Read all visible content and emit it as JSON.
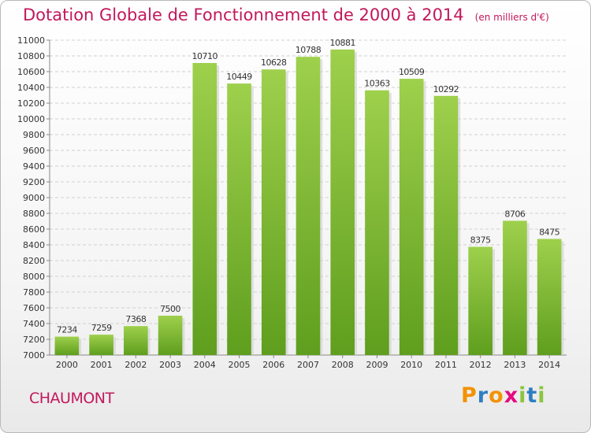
{
  "header": {
    "title": "Dotation Globale de Fonctionnement de 2000 à 2014",
    "unit": "(en milliers d'€)"
  },
  "footer": {
    "commune": "CHAUMONT",
    "brand_letters": [
      "P",
      "r",
      "o",
      "x",
      "i",
      "t",
      "i"
    ],
    "brand_colors": [
      "#f39200",
      "#2e7fc1",
      "#f39200",
      "#e5097f",
      "#8bc53f",
      "#2e7fc1",
      "#8bc53f"
    ]
  },
  "colors": {
    "bar_light": "#9ed04c",
    "bar_dark": "#5f9e1e",
    "grid": "#d0d0d0",
    "label": "#333333"
  },
  "chart_data": {
    "type": "bar",
    "categories": [
      "2000",
      "2001",
      "2002",
      "2003",
      "2004",
      "2005",
      "2006",
      "2007",
      "2008",
      "2009",
      "2010",
      "2011",
      "2012",
      "2013",
      "2014"
    ],
    "values": [
      7234,
      7259,
      7368,
      7500,
      10710,
      10449,
      10628,
      10788,
      10881,
      10363,
      10509,
      10292,
      8375,
      8706,
      8475
    ],
    "data_labels": [
      "7234",
      "7259",
      "7368",
      "7500",
      "10710",
      "10449",
      "10628",
      "10788",
      "10881",
      "10363",
      "10509",
      "10292",
      "8375",
      "8706",
      "8475"
    ],
    "ylim": [
      7000,
      11000
    ],
    "yticks": [
      7000,
      7200,
      7400,
      7600,
      7800,
      8000,
      8200,
      8400,
      8600,
      8800,
      9000,
      9200,
      9400,
      9600,
      9800,
      10000,
      10200,
      10400,
      10600,
      10800,
      11000
    ],
    "grid": true,
    "xlabel": "",
    "ylabel": ""
  }
}
